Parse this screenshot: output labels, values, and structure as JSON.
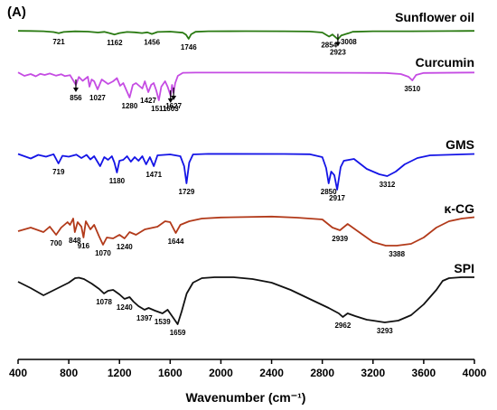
{
  "chart_data": {
    "type": "line",
    "panel_label": "(A)",
    "xlabel": "Wavenumber (cm⁻¹)",
    "ylabel": "",
    "xlim": [
      400,
      4000
    ],
    "x_ticks": [
      "400",
      "800",
      "1200",
      "1600",
      "2000",
      "2400",
      "2800",
      "3200",
      "3600",
      "4000"
    ],
    "grid": false,
    "legend": "none",
    "series": [
      {
        "name": "Sunflower oil",
        "color": "#2a7a12",
        "points": [
          [
            400,
            -0.2
          ],
          [
            500,
            -0.3
          ],
          [
            600,
            -0.6
          ],
          [
            680,
            -1.5
          ],
          [
            721,
            -2.8
          ],
          [
            760,
            -1.4
          ],
          [
            850,
            -0.7
          ],
          [
            950,
            -1.0
          ],
          [
            1030,
            -2.0
          ],
          [
            1080,
            -1.3
          ],
          [
            1120,
            -2.6
          ],
          [
            1162,
            -4.2
          ],
          [
            1200,
            -2.6
          ],
          [
            1260,
            -1.4
          ],
          [
            1320,
            -1.8
          ],
          [
            1377,
            -2.6
          ],
          [
            1420,
            -1.8
          ],
          [
            1456,
            -3.6
          ],
          [
            1500,
            -1.4
          ],
          [
            1600,
            -1.0
          ],
          [
            1700,
            -2.2
          ],
          [
            1725,
            -4.5
          ],
          [
            1746,
            -9.0
          ],
          [
            1765,
            -4.0
          ],
          [
            1800,
            -1.2
          ],
          [
            1900,
            -0.6
          ],
          [
            2200,
            -0.5
          ],
          [
            2500,
            -0.6
          ],
          [
            2700,
            -0.9
          ],
          [
            2800,
            -2.0
          ],
          [
            2854,
            -6.5
          ],
          [
            2880,
            -4.2
          ],
          [
            2923,
            -9.5
          ],
          [
            2950,
            -5.2
          ],
          [
            3008,
            -2.8
          ],
          [
            3040,
            -1.2
          ],
          [
            3200,
            -0.6
          ],
          [
            3500,
            -0.6
          ],
          [
            3800,
            -0.4
          ],
          [
            4000,
            -0.2
          ]
        ]
      },
      {
        "name": "Curcumin",
        "color": "#c54ce3",
        "points": [
          [
            400,
            -0.2
          ],
          [
            450,
            -4.0
          ],
          [
            500,
            -2.0
          ],
          [
            540,
            -4.5
          ],
          [
            575,
            -1.8
          ],
          [
            610,
            -3.0
          ],
          [
            650,
            -1.4
          ],
          [
            700,
            -3.8
          ],
          [
            740,
            -2.2
          ],
          [
            770,
            -4.3
          ],
          [
            810,
            -3.2
          ],
          [
            856,
            -14.0
          ],
          [
            880,
            -5.2
          ],
          [
            910,
            -9.5
          ],
          [
            950,
            -5.0
          ],
          [
            963,
            -16.0
          ],
          [
            980,
            -8.0
          ],
          [
            1000,
            -10.0
          ],
          [
            1027,
            -19.0
          ],
          [
            1060,
            -8.0
          ],
          [
            1110,
            -13.0
          ],
          [
            1150,
            -10.0
          ],
          [
            1180,
            -6.5
          ],
          [
            1205,
            -15.0
          ],
          [
            1230,
            -12.0
          ],
          [
            1255,
            -20.0
          ],
          [
            1280,
            -28.0
          ],
          [
            1305,
            -14.0
          ],
          [
            1330,
            -12.0
          ],
          [
            1380,
            -18.0
          ],
          [
            1400,
            -10.0
          ],
          [
            1427,
            -22.0
          ],
          [
            1450,
            -14.0
          ],
          [
            1470,
            -12.0
          ],
          [
            1490,
            -20.0
          ],
          [
            1511,
            -31.0
          ],
          [
            1530,
            -16.0
          ],
          [
            1560,
            -10.0
          ],
          [
            1580,
            -16.0
          ],
          [
            1603,
            -26.0
          ],
          [
            1615,
            -14.0
          ],
          [
            1627,
            -23.0
          ],
          [
            1640,
            -12.0
          ],
          [
            1660,
            -4.0
          ],
          [
            1700,
            -0.6
          ],
          [
            1800,
            -0.4
          ],
          [
            2400,
            -0.4
          ],
          [
            3000,
            -0.6
          ],
          [
            3300,
            -0.8
          ],
          [
            3420,
            -2.0
          ],
          [
            3480,
            -5.0
          ],
          [
            3510,
            -9.0
          ],
          [
            3540,
            -3.0
          ],
          [
            3600,
            -0.8
          ],
          [
            4000,
            -0.3
          ]
        ]
      },
      {
        "name": "GMS",
        "color": "#1414e6",
        "points": [
          [
            400,
            -0.5
          ],
          [
            450,
            -3.0
          ],
          [
            500,
            -5.5
          ],
          [
            560,
            -1.5
          ],
          [
            620,
            -3.5
          ],
          [
            680,
            -0.8
          ],
          [
            719,
            -11.0
          ],
          [
            750,
            -2.5
          ],
          [
            800,
            -3.5
          ],
          [
            860,
            -1.2
          ],
          [
            900,
            -5.0
          ],
          [
            940,
            -1.5
          ],
          [
            970,
            -6.5
          ],
          [
            1000,
            -3.0
          ],
          [
            1047,
            -14.0
          ],
          [
            1080,
            -4.0
          ],
          [
            1110,
            -7.0
          ],
          [
            1140,
            -3.0
          ],
          [
            1160,
            -10.0
          ],
          [
            1180,
            -21.0
          ],
          [
            1200,
            -8.0
          ],
          [
            1230,
            -7.0
          ],
          [
            1260,
            -3.0
          ],
          [
            1290,
            -9.0
          ],
          [
            1320,
            -4.0
          ],
          [
            1350,
            -8.0
          ],
          [
            1380,
            -3.0
          ],
          [
            1410,
            -12.0
          ],
          [
            1440,
            -4.0
          ],
          [
            1471,
            -14.0
          ],
          [
            1500,
            -2.0
          ],
          [
            1600,
            -1.0
          ],
          [
            1680,
            -3.0
          ],
          [
            1710,
            -14.0
          ],
          [
            1729,
            -33.0
          ],
          [
            1750,
            -10.0
          ],
          [
            1780,
            -1.0
          ],
          [
            1900,
            -0.4
          ],
          [
            2500,
            -0.5
          ],
          [
            2700,
            -0.8
          ],
          [
            2800,
            -4.0
          ],
          [
            2830,
            -16.0
          ],
          [
            2850,
            -33.0
          ],
          [
            2870,
            -20.0
          ],
          [
            2895,
            -24.0
          ],
          [
            2917,
            -40.0
          ],
          [
            2945,
            -15.0
          ],
          [
            2970,
            -8.0
          ],
          [
            3050,
            -6.0
          ],
          [
            3150,
            -17.0
          ],
          [
            3250,
            -23.0
          ],
          [
            3312,
            -25.0
          ],
          [
            3380,
            -20.0
          ],
          [
            3450,
            -12.0
          ],
          [
            3550,
            -5.0
          ],
          [
            3650,
            -2.0
          ],
          [
            4000,
            -0.5
          ]
        ]
      },
      {
        "name": "κ-CG",
        "color": "#b23a1a",
        "points": [
          [
            400,
            -16.0
          ],
          [
            500,
            -12.0
          ],
          [
            600,
            -17.0
          ],
          [
            650,
            -11.0
          ],
          [
            700,
            -20.0
          ],
          [
            740,
            -12.0
          ],
          [
            790,
            -6.0
          ],
          [
            810,
            -9.0
          ],
          [
            835,
            -2.0
          ],
          [
            848,
            -17.0
          ],
          [
            870,
            -6.0
          ],
          [
            900,
            -11.0
          ],
          [
            916,
            -23.0
          ],
          [
            935,
            -5.0
          ],
          [
            970,
            -14.0
          ],
          [
            1000,
            -9.0
          ],
          [
            1040,
            -22.0
          ],
          [
            1070,
            -31.0
          ],
          [
            1100,
            -23.0
          ],
          [
            1150,
            -24.0
          ],
          [
            1200,
            -20.0
          ],
          [
            1240,
            -24.0
          ],
          [
            1280,
            -17.0
          ],
          [
            1330,
            -20.0
          ],
          [
            1400,
            -14.0
          ],
          [
            1500,
            -11.0
          ],
          [
            1560,
            -5.0
          ],
          [
            1600,
            -6.0
          ],
          [
            1644,
            -18.0
          ],
          [
            1680,
            -9.0
          ],
          [
            1750,
            -5.0
          ],
          [
            1850,
            -2.0
          ],
          [
            2000,
            -0.8
          ],
          [
            2400,
            0.2
          ],
          [
            2600,
            -1.0
          ],
          [
            2800,
            -3.0
          ],
          [
            2880,
            -12.0
          ],
          [
            2939,
            -15.0
          ],
          [
            3000,
            -8.0
          ],
          [
            3080,
            -16.0
          ],
          [
            3200,
            -28.0
          ],
          [
            3300,
            -32.0
          ],
          [
            3388,
            -32.0
          ],
          [
            3500,
            -30.0
          ],
          [
            3600,
            -23.0
          ],
          [
            3700,
            -12.0
          ],
          [
            3800,
            -5.0
          ],
          [
            3900,
            -2.0
          ],
          [
            4000,
            -0.5
          ]
        ]
      },
      {
        "name": "SPI",
        "color": "#111111",
        "points": [
          [
            400,
            -5.0
          ],
          [
            500,
            -12.0
          ],
          [
            600,
            -20.0
          ],
          [
            700,
            -13.0
          ],
          [
            800,
            -6.0
          ],
          [
            850,
            -1.0
          ],
          [
            880,
            -0.5
          ],
          [
            920,
            -2.0
          ],
          [
            980,
            -7.0
          ],
          [
            1040,
            -13.0
          ],
          [
            1078,
            -18.0
          ],
          [
            1110,
            -15.0
          ],
          [
            1150,
            -14.0
          ],
          [
            1200,
            -19.0
          ],
          [
            1240,
            -24.0
          ],
          [
            1280,
            -22.0
          ],
          [
            1310,
            -27.0
          ],
          [
            1350,
            -32.0
          ],
          [
            1397,
            -36.0
          ],
          [
            1430,
            -34.0
          ],
          [
            1480,
            -37.0
          ],
          [
            1539,
            -40.0
          ],
          [
            1580,
            -36.0
          ],
          [
            1620,
            -44.0
          ],
          [
            1659,
            -52.0
          ],
          [
            1690,
            -38.0
          ],
          [
            1730,
            -18.0
          ],
          [
            1780,
            -6.0
          ],
          [
            1850,
            -1.0
          ],
          [
            1950,
            0.0
          ],
          [
            2100,
            0.0
          ],
          [
            2250,
            -2.0
          ],
          [
            2400,
            -6.0
          ],
          [
            2550,
            -14.0
          ],
          [
            2700,
            -24.0
          ],
          [
            2850,
            -34.0
          ],
          [
            2930,
            -40.0
          ],
          [
            2962,
            -44.0
          ],
          [
            3000,
            -40.0
          ],
          [
            3060,
            -43.0
          ],
          [
            3150,
            -47.0
          ],
          [
            3200,
            -48.0
          ],
          [
            3293,
            -50.0
          ],
          [
            3400,
            -48.0
          ],
          [
            3500,
            -42.0
          ],
          [
            3600,
            -30.0
          ],
          [
            3700,
            -14.0
          ],
          [
            3750,
            -4.0
          ],
          [
            3800,
            -1.0
          ],
          [
            3900,
            0.0
          ],
          [
            4000,
            0.0
          ]
        ]
      }
    ],
    "annotations": [
      {
        "series": 0,
        "x": 721,
        "label": "721",
        "arrow": false
      },
      {
        "series": 0,
        "x": 1162,
        "label": "1162",
        "arrow": false
      },
      {
        "series": 0,
        "x": 1456,
        "label": "1456",
        "arrow": false
      },
      {
        "series": 0,
        "x": 1746,
        "label": "1746",
        "arrow": false
      },
      {
        "series": 0,
        "x": 2854,
        "label": "2854",
        "arrow": false
      },
      {
        "series": 0,
        "x": 2923,
        "label": "2923",
        "arrow": true
      },
      {
        "series": 0,
        "x": 3008,
        "label": "3008",
        "arrow": false
      },
      {
        "series": 1,
        "x": 856,
        "label": "856",
        "arrow": true
      },
      {
        "series": 1,
        "x": 1027,
        "label": "1027",
        "arrow": false
      },
      {
        "series": 1,
        "x": 1280,
        "label": "1280",
        "arrow": false
      },
      {
        "series": 1,
        "x": 1427,
        "label": "1427",
        "arrow": false
      },
      {
        "series": 1,
        "x": 1511,
        "label": "1511",
        "arrow": false
      },
      {
        "series": 1,
        "x": 1603,
        "label": "1603",
        "arrow": true
      },
      {
        "series": 1,
        "x": 1627,
        "label": "1627",
        "arrow": true
      },
      {
        "series": 1,
        "x": 3510,
        "label": "3510",
        "arrow": false
      },
      {
        "series": 2,
        "x": 719,
        "label": "719",
        "arrow": false
      },
      {
        "series": 2,
        "x": 1180,
        "label": "1180",
        "arrow": false
      },
      {
        "series": 2,
        "x": 1471,
        "label": "1471",
        "arrow": false
      },
      {
        "series": 2,
        "x": 1729,
        "label": "1729",
        "arrow": false
      },
      {
        "series": 2,
        "x": 2850,
        "label": "2850",
        "arrow": false
      },
      {
        "series": 2,
        "x": 2917,
        "label": "2917",
        "arrow": false
      },
      {
        "series": 2,
        "x": 3312,
        "label": "3312",
        "arrow": false
      },
      {
        "series": 3,
        "x": 700,
        "label": "700",
        "arrow": false
      },
      {
        "series": 3,
        "x": 848,
        "label": "848",
        "arrow": false
      },
      {
        "series": 3,
        "x": 916,
        "label": "916",
        "arrow": false
      },
      {
        "series": 3,
        "x": 1070,
        "label": "1070",
        "arrow": false
      },
      {
        "series": 3,
        "x": 1240,
        "label": "1240",
        "arrow": false
      },
      {
        "series": 3,
        "x": 1644,
        "label": "1644",
        "arrow": false
      },
      {
        "series": 3,
        "x": 2939,
        "label": "2939",
        "arrow": false
      },
      {
        "series": 3,
        "x": 3388,
        "label": "3388",
        "arrow": false
      },
      {
        "series": 4,
        "x": 1078,
        "label": "1078",
        "arrow": false
      },
      {
        "series": 4,
        "x": 1240,
        "label": "1240",
        "arrow": false
      },
      {
        "series": 4,
        "x": 1397,
        "label": "1397",
        "arrow": false
      },
      {
        "series": 4,
        "x": 1539,
        "label": "1539",
        "arrow": false
      },
      {
        "series": 4,
        "x": 1659,
        "label": "1659",
        "arrow": false
      },
      {
        "series": 4,
        "x": 2962,
        "label": "2962",
        "arrow": false
      },
      {
        "series": 4,
        "x": 3293,
        "label": "3293",
        "arrow": false
      }
    ]
  }
}
